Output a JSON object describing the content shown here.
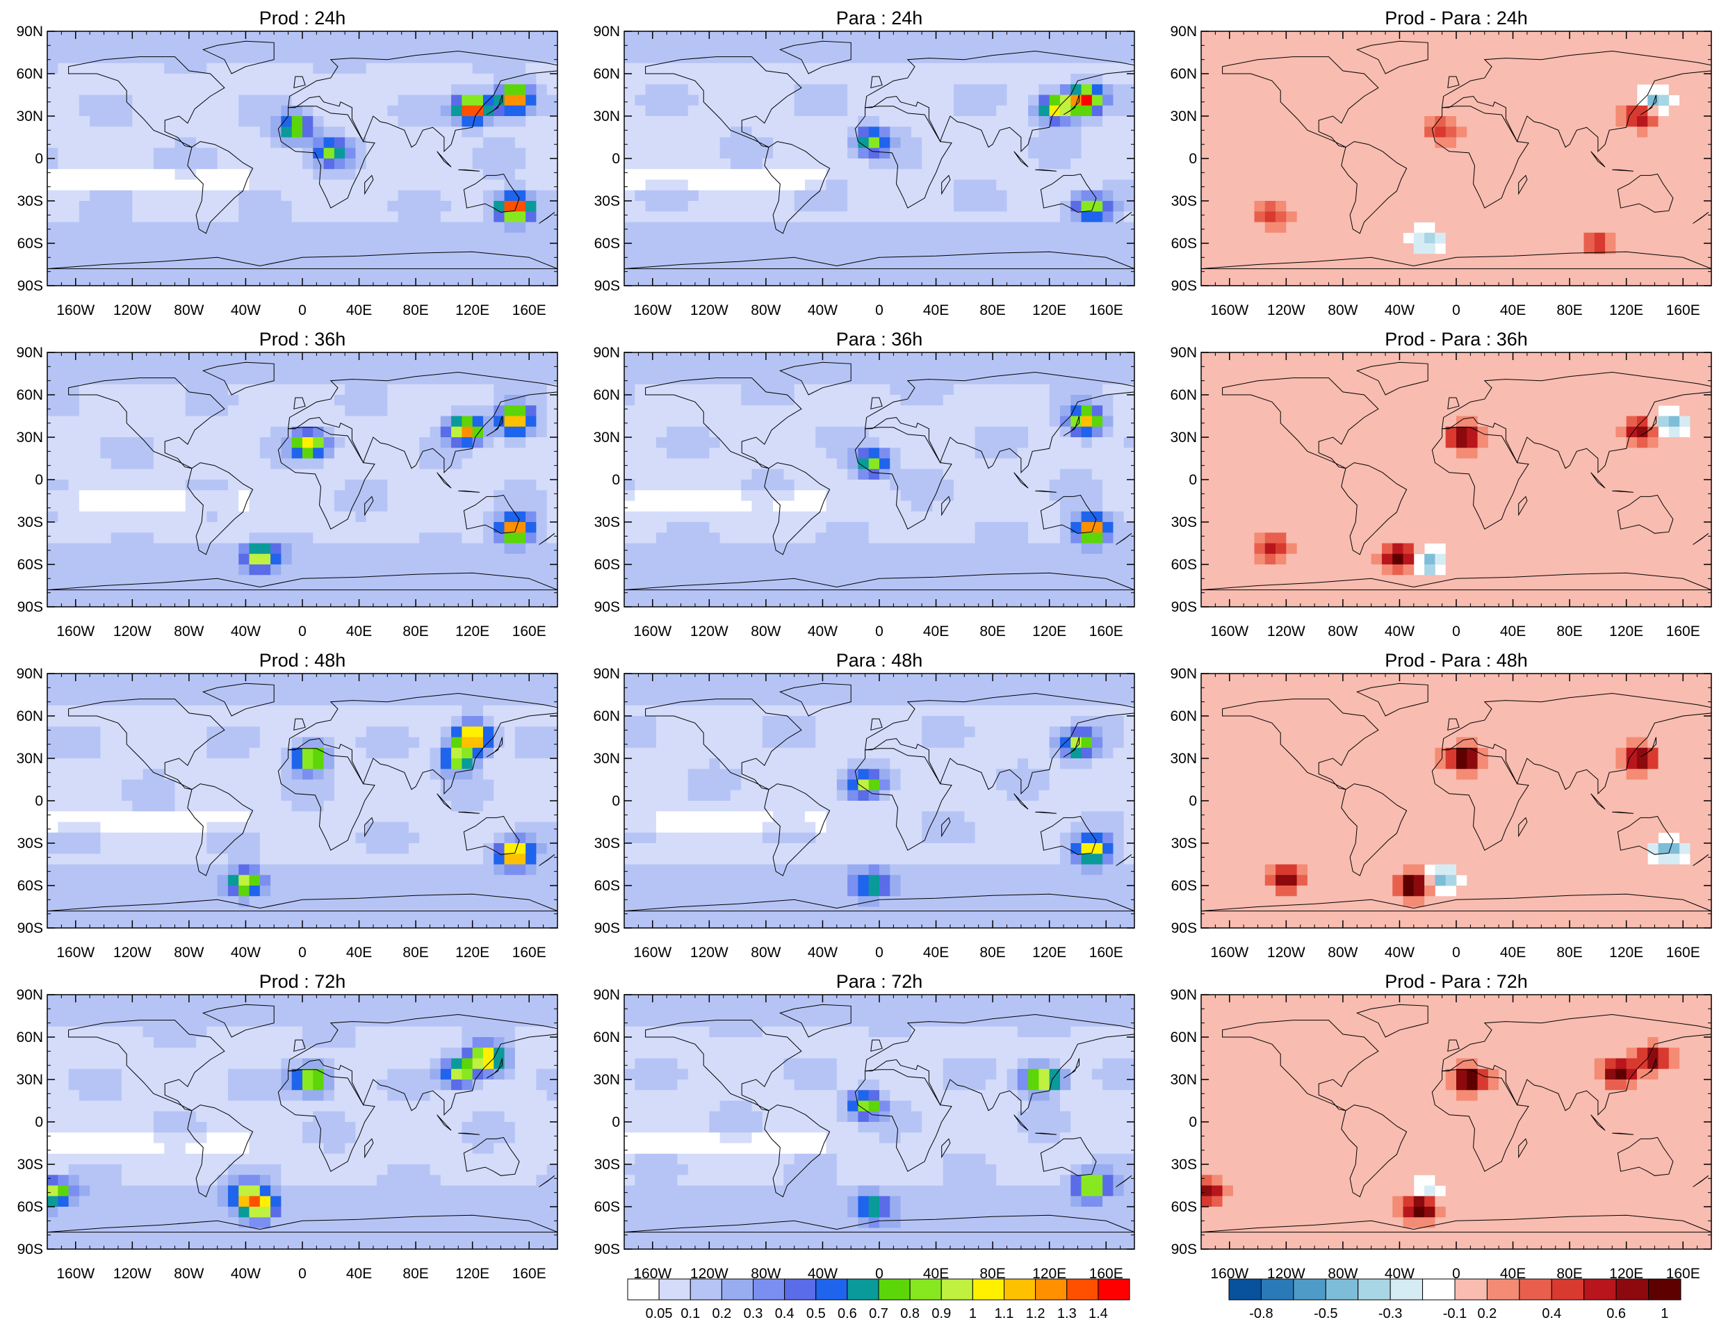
{
  "chart_data": {
    "type": "heatmap",
    "layout": "4 rows x 3 columns of global lat-lon maps",
    "panels": [
      {
        "title": "Prod : 24h",
        "kind": "field",
        "hotspots": [
          [
            120,
            35,
            1.4
          ],
          [
            150,
            42,
            1.3
          ],
          [
            -5,
            22,
            0.8
          ],
          [
            150,
            -35,
            1.4
          ],
          [
            20,
            5,
            0.7
          ]
        ]
      },
      {
        "title": "Para : 24h",
        "kind": "field",
        "hotspots": [
          [
            145,
            42,
            1.4
          ],
          [
            -5,
            12,
            0.8
          ],
          [
            125,
            35,
            1.0
          ],
          [
            150,
            -35,
            0.9
          ]
        ]
      },
      {
        "title": "Prod - Para : 24h",
        "kind": "diff",
        "hotspots": [
          [
            130,
            30,
            0.6
          ],
          [
            140,
            40,
            -0.5
          ],
          [
            -10,
            20,
            0.4
          ],
          [
            -130,
            -40,
            0.4
          ],
          [
            -20,
            -58,
            -0.4
          ],
          [
            100,
            -60,
            0.4
          ]
        ]
      },
      {
        "title": "Prod : 36h",
        "kind": "field",
        "hotspots": [
          [
            5,
            25,
            1.0
          ],
          [
            115,
            35,
            1.2
          ],
          [
            150,
            42,
            1.2
          ],
          [
            150,
            -35,
            1.3
          ],
          [
            -30,
            -55,
            0.9
          ]
        ]
      },
      {
        "title": "Para : 36h",
        "kind": "field",
        "hotspots": [
          [
            -5,
            12,
            0.8
          ],
          [
            145,
            42,
            1.1
          ],
          [
            150,
            -35,
            1.3
          ]
        ]
      },
      {
        "title": "Prod - Para : 36h",
        "kind": "diff",
        "hotspots": [
          [
            5,
            30,
            0.7
          ],
          [
            130,
            35,
            0.6
          ],
          [
            150,
            40,
            -0.5
          ],
          [
            -40,
            -55,
            0.8
          ],
          [
            -20,
            -58,
            -0.5
          ],
          [
            -130,
            -48,
            0.5
          ]
        ]
      },
      {
        "title": "Prod : 48h",
        "kind": "field",
        "hotspots": [
          [
            5,
            30,
            1.0
          ],
          [
            110,
            30,
            0.9
          ],
          [
            120,
            45,
            1.3
          ],
          [
            -40,
            -58,
            0.9
          ],
          [
            150,
            -38,
            1.3
          ]
        ]
      },
      {
        "title": "Para : 48h",
        "kind": "field",
        "hotspots": [
          [
            -10,
            12,
            0.8
          ],
          [
            140,
            40,
            0.9
          ],
          [
            150,
            -35,
            1.1
          ],
          [
            -5,
            -60,
            0.6
          ]
        ]
      },
      {
        "title": "Prod - Para : 48h",
        "kind": "diff",
        "hotspots": [
          [
            5,
            30,
            0.8
          ],
          [
            130,
            30,
            0.7
          ],
          [
            -30,
            -60,
            0.8
          ],
          [
            -120,
            -55,
            0.6
          ],
          [
            -10,
            -55,
            -0.5
          ],
          [
            150,
            -35,
            -0.5
          ]
        ]
      },
      {
        "title": "Prod : 72h",
        "kind": "field",
        "hotspots": [
          [
            5,
            30,
            1.0
          ],
          [
            110,
            35,
            0.9
          ],
          [
            130,
            45,
            1.2
          ],
          [
            -30,
            -60,
            1.0
          ],
          [
            -175,
            -50,
            0.9
          ],
          [
            -40,
            -52,
            0.8
          ]
        ]
      },
      {
        "title": "Para : 72h",
        "kind": "field",
        "hotspots": [
          [
            -10,
            12,
            0.8
          ],
          [
            115,
            30,
            1.1
          ],
          [
            150,
            -45,
            1.0
          ],
          [
            -5,
            -60,
            0.6
          ]
        ]
      },
      {
        "title": "Prod - Para : 72h",
        "kind": "diff",
        "hotspots": [
          [
            10,
            30,
            0.8
          ],
          [
            115,
            35,
            0.7
          ],
          [
            -25,
            -60,
            0.9
          ],
          [
            -175,
            -50,
            0.6
          ],
          [
            -20,
            -50,
            -0.4
          ],
          [
            140,
            45,
            0.6
          ]
        ]
      }
    ],
    "x_ticks": [
      "160W",
      "120W",
      "80W",
      "40W",
      "0",
      "40E",
      "80E",
      "120E",
      "160E"
    ],
    "x_tick_values": [
      -160,
      -120,
      -80,
      -40,
      0,
      40,
      80,
      120,
      160
    ],
    "y_ticks": [
      "90N",
      "60N",
      "30N",
      "0",
      "30S",
      "60S",
      "90S"
    ],
    "y_tick_values": [
      90,
      60,
      30,
      0,
      -30,
      -60,
      -90
    ],
    "xlim": [
      -180,
      180
    ],
    "ylim": [
      -90,
      90
    ],
    "field_colorbar": {
      "labels": [
        "0.05",
        "0.1",
        "0.2",
        "0.3",
        "0.4",
        "0.5",
        "0.6",
        "0.7",
        "0.8",
        "0.9",
        "1",
        "1.1",
        "1.2",
        "1.3",
        "1.4"
      ],
      "colors": [
        "#ffffff",
        "#d4dcfa",
        "#b6c4f5",
        "#98acf0",
        "#7a8ff0",
        "#5b6ce8",
        "#1f64ec",
        "#0a9a9a",
        "#5cd608",
        "#88e820",
        "#c0f040",
        "#fff000",
        "#ffc000",
        "#ff9000",
        "#ff5000",
        "#ff0000"
      ]
    },
    "diff_colorbar": {
      "labels": [
        "-0.8",
        "-0.5",
        "-0.3",
        "-0.1",
        "0.2",
        "0.4",
        "0.6",
        "1"
      ],
      "colors": [
        "#08519c",
        "#2a7ab8",
        "#4f9bc8",
        "#7ebdd8",
        "#a9d6e5",
        "#d6ecf4",
        "#ffffff",
        "#f8bcb0",
        "#f48b75",
        "#e8604d",
        "#d83a30",
        "#b8161c",
        "#8c0a0e",
        "#5e0000"
      ]
    }
  }
}
